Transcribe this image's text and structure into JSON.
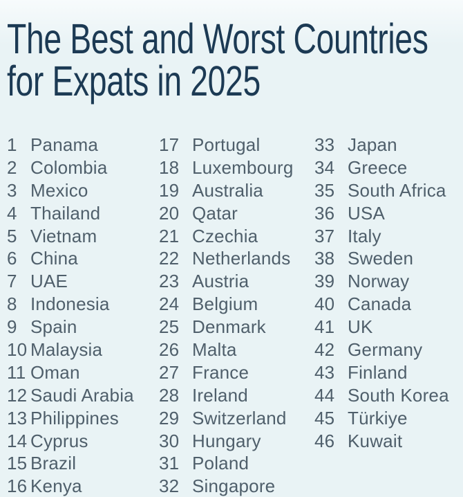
{
  "title": {
    "line1": "The Best and Worst Countries",
    "line2": "for Expats in 2025"
  },
  "colors": {
    "background": "#e9f3f5",
    "title_text": "#1c3a54",
    "list_text": "#4f5f6b"
  },
  "ranking": {
    "columns": [
      {
        "items": [
          {
            "rank": "1",
            "country": "Panama"
          },
          {
            "rank": "2",
            "country": "Colombia"
          },
          {
            "rank": "3",
            "country": "Mexico"
          },
          {
            "rank": "4",
            "country": "Thailand"
          },
          {
            "rank": "5",
            "country": "Vietnam"
          },
          {
            "rank": "6",
            "country": "China"
          },
          {
            "rank": "7",
            "country": "UAE"
          },
          {
            "rank": "8",
            "country": "Indonesia"
          },
          {
            "rank": "9",
            "country": "Spain"
          },
          {
            "rank": "10",
            "country": "Malaysia"
          },
          {
            "rank": "11",
            "country": "Oman"
          },
          {
            "rank": "12",
            "country": "Saudi Arabia"
          },
          {
            "rank": "13",
            "country": "Philippines"
          },
          {
            "rank": "14",
            "country": "Cyprus"
          },
          {
            "rank": "15",
            "country": "Brazil"
          },
          {
            "rank": "16",
            "country": "Kenya"
          }
        ]
      },
      {
        "items": [
          {
            "rank": "17",
            "country": "Portugal"
          },
          {
            "rank": "18",
            "country": "Luxembourg"
          },
          {
            "rank": "19",
            "country": "Australia"
          },
          {
            "rank": "20",
            "country": "Qatar"
          },
          {
            "rank": "21",
            "country": "Czechia"
          },
          {
            "rank": "22",
            "country": "Netherlands"
          },
          {
            "rank": "23",
            "country": "Austria"
          },
          {
            "rank": "24",
            "country": "Belgium"
          },
          {
            "rank": "25",
            "country": "Denmark"
          },
          {
            "rank": "26",
            "country": "Malta"
          },
          {
            "rank": "27",
            "country": "France"
          },
          {
            "rank": "28",
            "country": "Ireland"
          },
          {
            "rank": "29",
            "country": "Switzerland"
          },
          {
            "rank": "30",
            "country": "Hungary"
          },
          {
            "rank": "31",
            "country": "Poland"
          },
          {
            "rank": "32",
            "country": "Singapore"
          }
        ]
      },
      {
        "items": [
          {
            "rank": "33",
            "country": "Japan"
          },
          {
            "rank": "34",
            "country": "Greece"
          },
          {
            "rank": "35",
            "country": "South Africa"
          },
          {
            "rank": "36",
            "country": "USA"
          },
          {
            "rank": "37",
            "country": "Italy"
          },
          {
            "rank": "38",
            "country": "Sweden"
          },
          {
            "rank": "39",
            "country": "Norway"
          },
          {
            "rank": "40",
            "country": "Canada"
          },
          {
            "rank": "41",
            "country": "UK"
          },
          {
            "rank": "42",
            "country": "Germany"
          },
          {
            "rank": "43",
            "country": "Finland"
          },
          {
            "rank": "44",
            "country": "South Korea"
          },
          {
            "rank": "45",
            "country": "Türkiye"
          },
          {
            "rank": "46",
            "country": "Kuwait"
          }
        ]
      }
    ]
  }
}
